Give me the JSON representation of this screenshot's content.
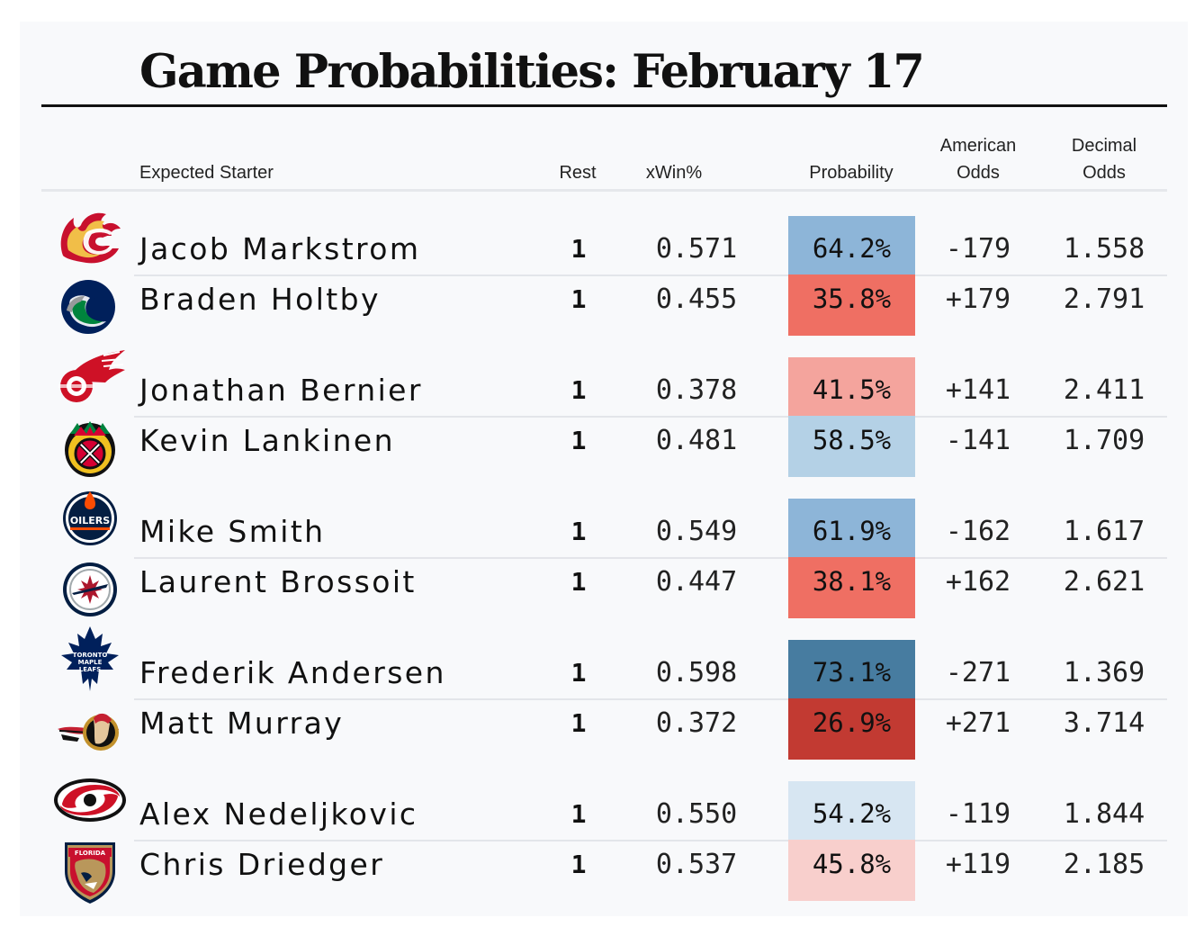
{
  "title": "Game Probabilities: February 17",
  "columns": {
    "starter": "Expected Starter",
    "rest": "Rest",
    "xwin": "xWin%",
    "probability": "Probability",
    "american_line1": "American",
    "american_line2": "Odds",
    "decimal_line1": "Decimal",
    "decimal_line2": "Odds"
  },
  "colors": {
    "fav_strong": "#477ca0",
    "fav_mid": "#8db5d8",
    "fav_light": "#b4d1e6",
    "fav_faint": "#d7e6f2",
    "dog_strong": "#c23a32",
    "dog_mid": "#ef6f63",
    "dog_light": "#f4a49d",
    "dog_faint": "#f8cfcc"
  },
  "games": [
    {
      "teams": [
        {
          "team_icon": "flames-icon",
          "starter": "Jacob Markstrom",
          "rest": "1",
          "xwin": "0.571",
          "probability": "64.2%",
          "american": "-179",
          "decimal": "1.558",
          "color": "#8db5d8"
        },
        {
          "team_icon": "canucks-icon",
          "starter": "Braden Holtby",
          "rest": "1",
          "xwin": "0.455",
          "probability": "35.8%",
          "american": "+179",
          "decimal": "2.791",
          "color": "#ef6f63"
        }
      ]
    },
    {
      "teams": [
        {
          "team_icon": "red-wings-icon",
          "starter": "Jonathan Bernier",
          "rest": "1",
          "xwin": "0.378",
          "probability": "41.5%",
          "american": "+141",
          "decimal": "2.411",
          "color": "#f4a49d"
        },
        {
          "team_icon": "blackhawks-icon",
          "starter": "Kevin Lankinen",
          "rest": "1",
          "xwin": "0.481",
          "probability": "58.5%",
          "american": "-141",
          "decimal": "1.709",
          "color": "#b4d1e6"
        }
      ]
    },
    {
      "teams": [
        {
          "team_icon": "oilers-icon",
          "starter": "Mike Smith",
          "rest": "1",
          "xwin": "0.549",
          "probability": "61.9%",
          "american": "-162",
          "decimal": "1.617",
          "color": "#8db5d8"
        },
        {
          "team_icon": "jets-icon",
          "starter": "Laurent Brossoit",
          "rest": "1",
          "xwin": "0.447",
          "probability": "38.1%",
          "american": "+162",
          "decimal": "2.621",
          "color": "#ef6f63"
        }
      ]
    },
    {
      "teams": [
        {
          "team_icon": "maple-leafs-icon",
          "starter": "Frederik Andersen",
          "rest": "1",
          "xwin": "0.598",
          "probability": "73.1%",
          "american": "-271",
          "decimal": "1.369",
          "color": "#477ca0"
        },
        {
          "team_icon": "senators-icon",
          "starter": "Matt Murray",
          "rest": "1",
          "xwin": "0.372",
          "probability": "26.9%",
          "american": "+271",
          "decimal": "3.714",
          "color": "#c23a32"
        }
      ]
    },
    {
      "teams": [
        {
          "team_icon": "hurricanes-icon",
          "starter": "Alex Nedeljkovic",
          "rest": "1",
          "xwin": "0.550",
          "probability": "54.2%",
          "american": "-119",
          "decimal": "1.844",
          "color": "#d7e6f2"
        },
        {
          "team_icon": "panthers-icon",
          "starter": "Chris Driedger",
          "rest": "1",
          "xwin": "0.537",
          "probability": "45.8%",
          "american": "+119",
          "decimal": "2.185",
          "color": "#f8cfcc"
        }
      ]
    }
  ],
  "logo_text": {
    "oilers": "OILERS",
    "leafs_line1": "TORONTO",
    "leafs_line2": "MAPLE",
    "leafs_line3": "LEAFS",
    "florida": "FLORIDA"
  }
}
